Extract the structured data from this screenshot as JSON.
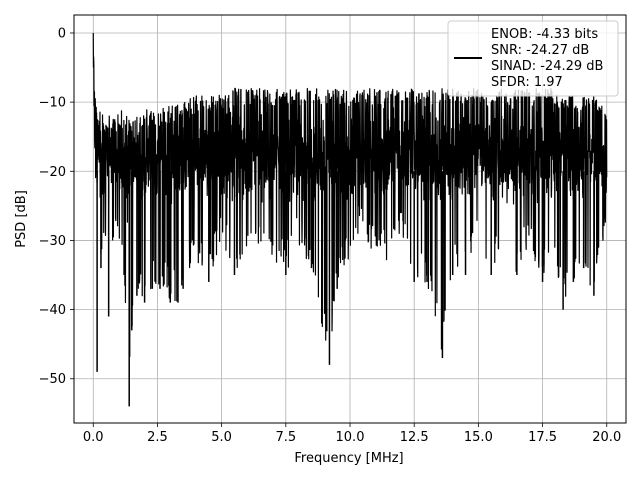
{
  "chart_data": {
    "type": "line",
    "xlabel": "Frequency [MHz]",
    "ylabel": "PSD [dB]",
    "xlim": [
      -0.75,
      20.75
    ],
    "ylim": [
      -56.4,
      2.6
    ],
    "xticks": [
      0.0,
      2.5,
      5.0,
      7.5,
      10.0,
      12.5,
      15.0,
      17.5,
      20.0
    ],
    "xtick_labels": [
      "0.0",
      "2.5",
      "5.0",
      "7.5",
      "10.0",
      "12.5",
      "15.0",
      "17.5",
      "20.0"
    ],
    "yticks": [
      0,
      -10,
      -20,
      -30,
      -40,
      -50
    ],
    "ytick_labels": [
      "0",
      "−10",
      "−20",
      "−30",
      "−40",
      "−50"
    ],
    "grid": true,
    "legend_position": "top-right",
    "legend_lines": [
      "ENOB: -4.33 bits",
      "SNR: -24.27 dB",
      "SINAD: -24.29 dB",
      "SFDR: 1.97"
    ],
    "series": [
      {
        "color": "#000000",
        "x": [
          0.0,
          0.02,
          0.05,
          0.1,
          0.15,
          0.2,
          0.3,
          0.45,
          0.6,
          0.8,
          1.0,
          1.2,
          1.4,
          1.5,
          1.7,
          2.0,
          2.3,
          2.6,
          3.0,
          3.3,
          3.5,
          4.0,
          4.5,
          5.0,
          5.5,
          6.0,
          6.5,
          7.0,
          7.5,
          8.0,
          8.5,
          8.9,
          9.2,
          9.5,
          10.0,
          10.5,
          11.0,
          11.5,
          12.0,
          12.5,
          13.0,
          13.6,
          14.0,
          14.5,
          15.0,
          15.5,
          16.0,
          16.5,
          17.0,
          17.5,
          17.9,
          18.3,
          18.7,
          19.1,
          19.5,
          20.0
        ],
        "upper": [
          0,
          -3,
          -8,
          -9,
          -11,
          -12,
          -11,
          -12,
          -12,
          -12,
          -11,
          -11,
          -12,
          -11,
          -12,
          -11,
          -11,
          -11,
          -10,
          -10,
          -10,
          -9,
          -9,
          -9,
          -8,
          -8,
          -8,
          -8,
          -8,
          -8,
          -8,
          -8,
          -8,
          -8,
          -8,
          -8,
          -8,
          -8,
          -8,
          -8,
          -8,
          -8,
          -8,
          -8,
          -8,
          -8,
          -8,
          -8,
          -8,
          -8,
          -8,
          -9,
          -9,
          -9,
          -9,
          -11
        ],
        "lower": [
          -3,
          -8,
          -15,
          -22,
          -49,
          -27,
          -34,
          -28,
          -41,
          -30,
          -33,
          -35,
          -54,
          -43,
          -38,
          -39,
          -37,
          -37,
          -39,
          -39,
          -37,
          -33,
          -36,
          -31,
          -35,
          -33,
          -30,
          -33,
          -35,
          -31,
          -34,
          -42,
          -48,
          -37,
          -32,
          -29,
          -33,
          -33,
          -29,
          -36,
          -36,
          -47,
          -35,
          -35,
          -29,
          -35,
          -33,
          -35,
          -31,
          -36,
          -31,
          -40,
          -36,
          -34,
          -38,
          -28
        ],
        "core_low": -20,
        "core_high": -12
      }
    ]
  }
}
